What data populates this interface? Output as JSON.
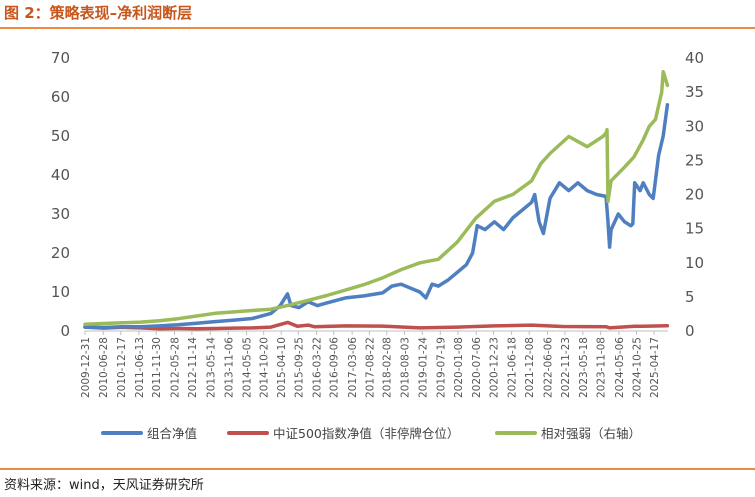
{
  "figure": {
    "title": "图 2：策略表现–净利润断层",
    "source": "资料来源：wind，天风证券研究所"
  },
  "colors": {
    "accent": "#ef8a3e",
    "title": "#c8561c",
    "series_portfolio": "#4f7fc1",
    "series_index": "#c0504d",
    "series_relative": "#9bbb59"
  },
  "chart_data": {
    "type": "line",
    "x_type": "date",
    "left_ylim": [
      0,
      70
    ],
    "left_yticks": [
      "0",
      "10",
      "20",
      "30",
      "40",
      "50",
      "60",
      "70"
    ],
    "right_ylim": [
      0,
      40
    ],
    "right_yticks": [
      "0",
      "5",
      "10",
      "15",
      "20",
      "25",
      "30",
      "35",
      "40"
    ],
    "grid": false,
    "legend_position": "bottom",
    "xlim": [
      "2009-12-31",
      "2025-08-31"
    ],
    "xticks": [
      "2009-12-31",
      "2010-06-28",
      "2010-12-17",
      "2011-06-13",
      "2011-11-30",
      "2012-05-28",
      "2012-11-14",
      "2013-05-14",
      "2013-11-06",
      "2014-05-05",
      "2014-10-20",
      "2015-04-10",
      "2015-09-25",
      "2016-03-22",
      "2016-09-06",
      "2017-03-06",
      "2017-08-22",
      "2018-02-08",
      "2018-08-03",
      "2019-01-24",
      "2019-07-19",
      "2020-01-08",
      "2020-07-06",
      "2020-12-23",
      "2021-06-18",
      "2021-12-08",
      "2022-06-06",
      "2022-11-23",
      "2023-05-18",
      "2023-11-08",
      "2024-05-06",
      "2024-10-25",
      "2025-04-17"
    ],
    "series": [
      {
        "name": "组合净值",
        "axis": "left",
        "points": [
          [
            "2009-12-31",
            1.0
          ],
          [
            "2010-06-30",
            0.9
          ],
          [
            "2010-12-31",
            1.1
          ],
          [
            "2011-06-30",
            1.1
          ],
          [
            "2011-12-31",
            1.3
          ],
          [
            "2012-06-30",
            1.6
          ],
          [
            "2012-12-31",
            2.0
          ],
          [
            "2013-06-30",
            2.4
          ],
          [
            "2013-12-31",
            2.8
          ],
          [
            "2014-06-30",
            3.2
          ],
          [
            "2014-12-31",
            4.5
          ],
          [
            "2015-03-31",
            6.5
          ],
          [
            "2015-06-10",
            9.5
          ],
          [
            "2015-07-15",
            6.5
          ],
          [
            "2015-09-30",
            6.0
          ],
          [
            "2015-12-31",
            7.5
          ],
          [
            "2016-03-31",
            6.5
          ],
          [
            "2016-06-30",
            7.2
          ],
          [
            "2016-12-31",
            8.5
          ],
          [
            "2017-06-30",
            9.0
          ],
          [
            "2017-12-31",
            9.8
          ],
          [
            "2018-03-31",
            11.5
          ],
          [
            "2018-06-30",
            12.0
          ],
          [
            "2018-09-30",
            11.0
          ],
          [
            "2018-12-31",
            10.0
          ],
          [
            "2019-02-28",
            8.5
          ],
          [
            "2019-04-30",
            12.0
          ],
          [
            "2019-06-30",
            11.5
          ],
          [
            "2019-09-30",
            13.0
          ],
          [
            "2019-12-31",
            15.0
          ],
          [
            "2020-03-31",
            17.0
          ],
          [
            "2020-05-31",
            20.0
          ],
          [
            "2020-07-15",
            27.0
          ],
          [
            "2020-09-30",
            26.0
          ],
          [
            "2020-12-31",
            28.0
          ],
          [
            "2021-03-31",
            26.0
          ],
          [
            "2021-06-30",
            29.0
          ],
          [
            "2021-09-30",
            31.0
          ],
          [
            "2021-12-31",
            33.0
          ],
          [
            "2022-01-31",
            35.0
          ],
          [
            "2022-03-15",
            28.0
          ],
          [
            "2022-04-26",
            25.0
          ],
          [
            "2022-06-30",
            34.0
          ],
          [
            "2022-09-30",
            38.0
          ],
          [
            "2022-12-31",
            36.0
          ],
          [
            "2023-03-31",
            38.0
          ],
          [
            "2023-06-30",
            36.0
          ],
          [
            "2023-09-30",
            35.0
          ],
          [
            "2023-12-31",
            34.5
          ],
          [
            "2024-01-20",
            28.0
          ],
          [
            "2024-02-05",
            21.5
          ],
          [
            "2024-02-20",
            26.0
          ],
          [
            "2024-04-30",
            30.0
          ],
          [
            "2024-06-30",
            28.0
          ],
          [
            "2024-08-31",
            27.0
          ],
          [
            "2024-09-20",
            27.5
          ],
          [
            "2024-10-08",
            38.0
          ],
          [
            "2024-11-30",
            36.0
          ],
          [
            "2024-12-31",
            38.0
          ],
          [
            "2025-02-28",
            35.0
          ],
          [
            "2025-04-08",
            34.0
          ],
          [
            "2025-05-31",
            45.0
          ],
          [
            "2025-07-15",
            50.0
          ],
          [
            "2025-08-25",
            58.0
          ]
        ]
      },
      {
        "name": "中证500指数净值（非停牌仓位）",
        "axis": "left",
        "points": [
          [
            "2009-12-31",
            1.0
          ],
          [
            "2010-06-30",
            0.75
          ],
          [
            "2010-12-31",
            0.95
          ],
          [
            "2011-06-30",
            0.8
          ],
          [
            "2011-12-31",
            0.6
          ],
          [
            "2012-06-30",
            0.65
          ],
          [
            "2012-12-31",
            0.6
          ],
          [
            "2013-06-30",
            0.65
          ],
          [
            "2013-12-31",
            0.75
          ],
          [
            "2014-06-30",
            0.8
          ],
          [
            "2014-12-31",
            1.0
          ],
          [
            "2015-06-12",
            2.2
          ],
          [
            "2015-09-15",
            1.2
          ],
          [
            "2015-12-31",
            1.5
          ],
          [
            "2016-02-29",
            1.1
          ],
          [
            "2016-12-31",
            1.3
          ],
          [
            "2017-12-31",
            1.25
          ],
          [
            "2018-12-31",
            0.8
          ],
          [
            "2019-12-31",
            1.0
          ],
          [
            "2020-12-31",
            1.3
          ],
          [
            "2021-12-31",
            1.5
          ],
          [
            "2022-10-31",
            1.15
          ],
          [
            "2023-12-31",
            1.1
          ],
          [
            "2024-02-05",
            0.8
          ],
          [
            "2024-10-08",
            1.2
          ],
          [
            "2024-12-31",
            1.2
          ],
          [
            "2025-08-25",
            1.35
          ]
        ]
      },
      {
        "name": "相对强弱（右轴）",
        "axis": "right",
        "points": [
          [
            "2009-12-31",
            1.0
          ],
          [
            "2010-06-30",
            1.1
          ],
          [
            "2010-12-31",
            1.2
          ],
          [
            "2011-06-30",
            1.3
          ],
          [
            "2011-12-31",
            1.5
          ],
          [
            "2012-06-30",
            1.8
          ],
          [
            "2012-12-31",
            2.2
          ],
          [
            "2013-06-30",
            2.6
          ],
          [
            "2013-12-31",
            2.8
          ],
          [
            "2014-06-30",
            3.0
          ],
          [
            "2014-12-31",
            3.2
          ],
          [
            "2015-06-30",
            3.8
          ],
          [
            "2015-12-31",
            4.5
          ],
          [
            "2016-06-30",
            5.2
          ],
          [
            "2016-12-31",
            6.0
          ],
          [
            "2017-06-30",
            6.8
          ],
          [
            "2017-12-31",
            7.8
          ],
          [
            "2018-06-30",
            9.0
          ],
          [
            "2018-12-31",
            10.0
          ],
          [
            "2019-06-30",
            10.5
          ],
          [
            "2019-12-31",
            13.0
          ],
          [
            "2020-06-30",
            16.5
          ],
          [
            "2020-12-31",
            19.0
          ],
          [
            "2021-06-30",
            20.0
          ],
          [
            "2021-12-31",
            22.0
          ],
          [
            "2022-03-31",
            24.5
          ],
          [
            "2022-06-30",
            26.0
          ],
          [
            "2022-12-31",
            28.5
          ],
          [
            "2023-06-30",
            27.0
          ],
          [
            "2023-11-30",
            28.5
          ],
          [
            "2023-12-31",
            29.0
          ],
          [
            "2024-01-10",
            29.5
          ],
          [
            "2024-01-20",
            19.0
          ],
          [
            "2024-02-20",
            22.0
          ],
          [
            "2024-06-30",
            24.0
          ],
          [
            "2024-09-30",
            25.5
          ],
          [
            "2024-12-31",
            28.0
          ],
          [
            "2025-02-28",
            30.0
          ],
          [
            "2025-04-30",
            31.0
          ],
          [
            "2025-06-30",
            35.0
          ],
          [
            "2025-07-15",
            38.0
          ],
          [
            "2025-08-25",
            36.0
          ]
        ]
      }
    ]
  }
}
